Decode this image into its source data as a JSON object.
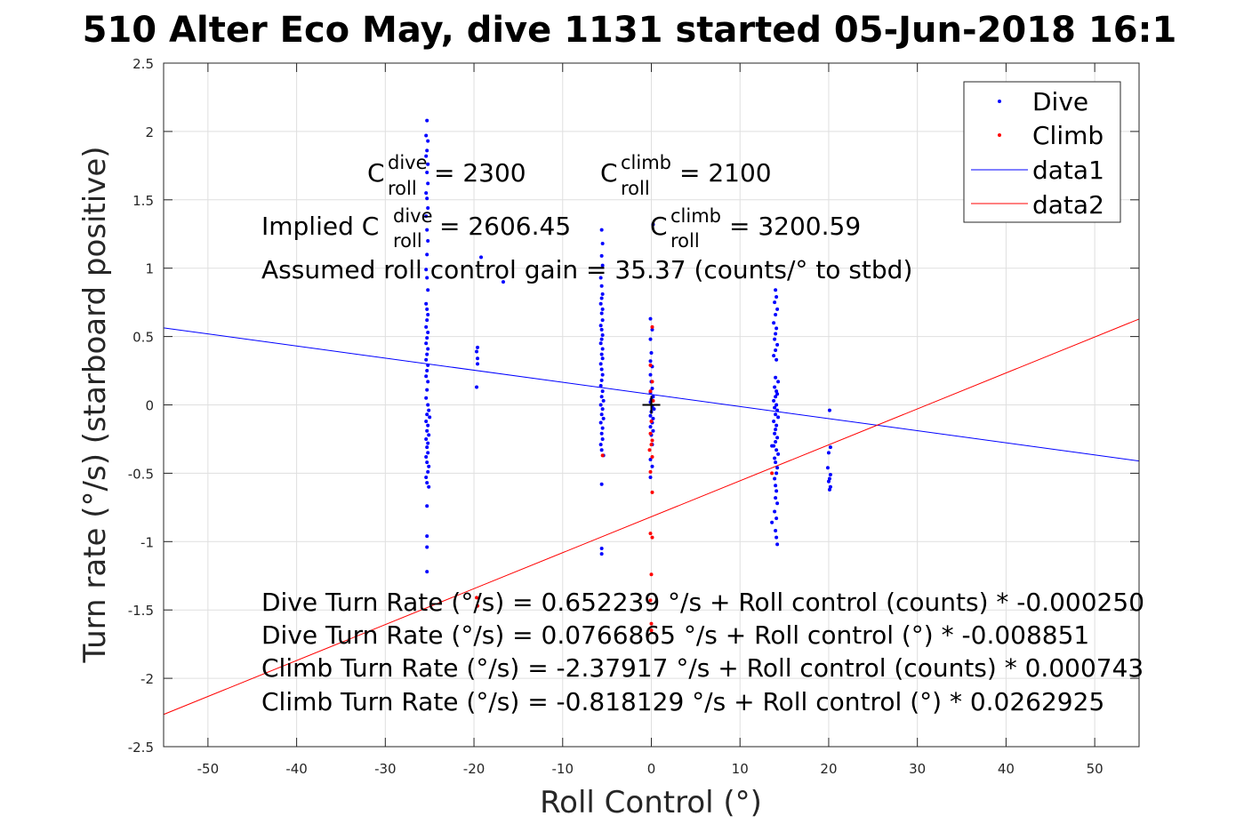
{
  "chart_data": {
    "type": "scatter",
    "title": "510 Alter Eco May, dive 1131 started 05-Jun-2018 16:1",
    "xlabel": "Roll Control (°)",
    "ylabel": "Turn rate (°/s) (starboard positive)",
    "xlim": [
      -55,
      55
    ],
    "ylim": [
      -2.5,
      2.5
    ],
    "grid": true,
    "x_ticks": [
      -50,
      -40,
      -30,
      -20,
      -10,
      0,
      10,
      20,
      30,
      40,
      50
    ],
    "x_tick_labels": [
      "-50",
      "-40",
      "-30",
      "-20",
      "-10",
      "0",
      "10",
      "20",
      "30",
      "40",
      "50"
    ],
    "y_ticks": [
      -2.5,
      -2,
      -1.5,
      -1,
      -0.5,
      0,
      0.5,
      1,
      1.5,
      2,
      2.5
    ],
    "y_tick_labels": [
      "-2.5",
      "-2",
      "-1.5",
      "-1",
      "-0.5",
      "0",
      "0.5",
      "1",
      "1.5",
      "2",
      "2.5"
    ],
    "legend_position": "top-right",
    "legend": [
      "Dive",
      "Climb",
      "data1",
      "data2"
    ],
    "colors": {
      "dive": "#0000ff",
      "climb": "#ff0000",
      "data1": "#0000ff",
      "data2": "#ff0000",
      "center": "#000000"
    },
    "series": [
      {
        "name": "Dive",
        "kind": "points",
        "color": "#0000ff",
        "points": [
          [
            -25.3,
            2.08
          ],
          [
            -25.4,
            1.97
          ],
          [
            -25.2,
            1.93
          ],
          [
            -25.3,
            1.86
          ],
          [
            -25.4,
            1.82
          ],
          [
            -25.2,
            1.76
          ],
          [
            -25.3,
            1.7
          ],
          [
            -25.2,
            1.62
          ],
          [
            -25.4,
            1.55
          ],
          [
            -25.3,
            1.51
          ],
          [
            -25.2,
            1.44
          ],
          [
            -25.4,
            1.38
          ],
          [
            -25.3,
            1.28
          ],
          [
            -25.2,
            1.2
          ],
          [
            -25.3,
            1.1
          ],
          [
            -25.4,
            0.99
          ],
          [
            -25.3,
            0.93
          ],
          [
            -25.2,
            0.84
          ],
          [
            -25.4,
            0.74
          ],
          [
            -25.3,
            0.7
          ],
          [
            -25.2,
            0.66
          ],
          [
            -25.3,
            0.62
          ],
          [
            -25.4,
            0.57
          ],
          [
            -25.2,
            0.53
          ],
          [
            -25.3,
            0.49
          ],
          [
            -25.4,
            0.45
          ],
          [
            -25.2,
            0.41
          ],
          [
            -25.3,
            0.37
          ],
          [
            -25.4,
            0.33
          ],
          [
            -25.2,
            0.29
          ],
          [
            -25.3,
            0.25
          ],
          [
            -25.4,
            0.21
          ],
          [
            -25.2,
            0.17
          ],
          [
            -25.3,
            0.11
          ],
          [
            -25.4,
            0.05
          ],
          [
            -25.2,
            0.0
          ],
          [
            -25.1,
            -0.04
          ],
          [
            -25.3,
            -0.07
          ],
          [
            -25.0,
            -0.09
          ],
          [
            -25.4,
            -0.12
          ],
          [
            -25.2,
            -0.15
          ],
          [
            -25.3,
            -0.19
          ],
          [
            -25.1,
            -0.22
          ],
          [
            -25.4,
            -0.25
          ],
          [
            -25.2,
            -0.28
          ],
          [
            -25.3,
            -0.31
          ],
          [
            -25.2,
            -0.35
          ],
          [
            -25.4,
            -0.38
          ],
          [
            -25.3,
            -0.42
          ],
          [
            -25.1,
            -0.45
          ],
          [
            -25.2,
            -0.49
          ],
          [
            -25.4,
            -0.53
          ],
          [
            -25.3,
            -0.57
          ],
          [
            -25.1,
            -0.6
          ],
          [
            -25.3,
            -0.74
          ],
          [
            -25.3,
            -0.96
          ],
          [
            -25.3,
            -1.04
          ],
          [
            -25.3,
            -1.22
          ],
          [
            -19.6,
            0.42
          ],
          [
            -19.7,
            0.39
          ],
          [
            -19.6,
            0.34
          ],
          [
            -19.6,
            0.3
          ],
          [
            -19.7,
            0.13
          ],
          [
            -19.2,
            1.08
          ],
          [
            -16.7,
            0.9
          ],
          [
            -5.6,
            1.28
          ],
          [
            -5.5,
            1.18
          ],
          [
            -5.6,
            1.09
          ],
          [
            -5.5,
            1.02
          ],
          [
            -5.7,
            0.93
          ],
          [
            -5.6,
            0.87
          ],
          [
            -5.5,
            0.81
          ],
          [
            -5.6,
            0.78
          ],
          [
            -5.7,
            0.74
          ],
          [
            -5.5,
            0.7
          ],
          [
            -5.6,
            0.67
          ],
          [
            -5.5,
            0.62
          ],
          [
            -5.7,
            0.58
          ],
          [
            -5.6,
            0.55
          ],
          [
            -5.5,
            0.51
          ],
          [
            -5.6,
            0.48
          ],
          [
            -5.7,
            0.45
          ],
          [
            -5.5,
            0.41
          ],
          [
            -5.6,
            0.37
          ],
          [
            -5.5,
            0.34
          ],
          [
            -5.7,
            0.3
          ],
          [
            -5.6,
            0.26
          ],
          [
            -5.5,
            0.22
          ],
          [
            -5.6,
            0.18
          ],
          [
            -5.7,
            0.14
          ],
          [
            -5.5,
            0.1
          ],
          [
            -5.6,
            0.06
          ],
          [
            -5.4,
            0.03
          ],
          [
            -5.7,
            0.0
          ],
          [
            -5.5,
            -0.03
          ],
          [
            -5.6,
            -0.07
          ],
          [
            -5.4,
            -0.1
          ],
          [
            -5.7,
            -0.13
          ],
          [
            -5.5,
            -0.17
          ],
          [
            -5.6,
            -0.21
          ],
          [
            -5.5,
            -0.25
          ],
          [
            -5.7,
            -0.29
          ],
          [
            -5.6,
            -0.33
          ],
          [
            -5.4,
            -0.37
          ],
          [
            -5.6,
            -0.58
          ],
          [
            -5.6,
            -1.05
          ],
          [
            -5.6,
            -1.09
          ],
          [
            -0.1,
            0.63
          ],
          [
            0.1,
            0.55
          ],
          [
            -0.1,
            0.48
          ],
          [
            0.0,
            0.38
          ],
          [
            -0.1,
            0.32
          ],
          [
            0.1,
            0.28
          ],
          [
            -0.1,
            0.22
          ],
          [
            0.0,
            0.17
          ],
          [
            0.1,
            0.12
          ],
          [
            -0.1,
            0.09
          ],
          [
            0.2,
            0.06
          ],
          [
            0.0,
            0.04
          ],
          [
            -0.1,
            0.02
          ],
          [
            0.1,
            -0.01
          ],
          [
            0.3,
            -0.03
          ],
          [
            0.0,
            -0.05
          ],
          [
            -0.1,
            -0.08
          ],
          [
            0.2,
            -0.1
          ],
          [
            0.1,
            -0.13
          ],
          [
            -0.1,
            -0.16
          ],
          [
            0.2,
            -0.19
          ],
          [
            0.0,
            -0.22
          ],
          [
            0.1,
            -0.29
          ],
          [
            -0.1,
            -0.4
          ],
          [
            0.1,
            -0.45
          ],
          [
            -0.1,
            -0.53
          ],
          [
            0.2,
            1.32
          ],
          [
            14.0,
            0.84
          ],
          [
            14.1,
            0.79
          ],
          [
            13.9,
            0.75
          ],
          [
            14.2,
            0.7
          ],
          [
            14.0,
            0.66
          ],
          [
            13.8,
            0.6
          ],
          [
            14.1,
            0.56
          ],
          [
            14.0,
            0.52
          ],
          [
            13.9,
            0.48
          ],
          [
            14.2,
            0.44
          ],
          [
            14.0,
            0.4
          ],
          [
            13.8,
            0.36
          ],
          [
            14.1,
            0.33
          ],
          [
            14.3,
            0.17
          ],
          [
            14.0,
            0.2
          ],
          [
            13.9,
            0.13
          ],
          [
            14.1,
            0.1
          ],
          [
            14.2,
            0.08
          ],
          [
            14.0,
            0.06
          ],
          [
            13.8,
            0.03
          ],
          [
            14.1,
            0.0
          ],
          [
            13.9,
            -0.02
          ],
          [
            14.2,
            -0.04
          ],
          [
            14.0,
            -0.07
          ],
          [
            14.3,
            -0.09
          ],
          [
            13.8,
            -0.12
          ],
          [
            14.1,
            -0.15
          ],
          [
            14.0,
            -0.18
          ],
          [
            13.9,
            -0.21
          ],
          [
            14.2,
            -0.24
          ],
          [
            14.0,
            -0.27
          ],
          [
            13.8,
            -0.3
          ],
          [
            14.1,
            -0.33
          ],
          [
            14.3,
            -0.36
          ],
          [
            13.9,
            -0.39
          ],
          [
            14.0,
            -0.42
          ],
          [
            14.2,
            -0.46
          ],
          [
            14.1,
            -0.5
          ],
          [
            13.9,
            -0.54
          ],
          [
            14.0,
            -0.59
          ],
          [
            14.1,
            -0.63
          ],
          [
            14.0,
            -0.68
          ],
          [
            14.2,
            -0.72
          ],
          [
            13.9,
            -0.78
          ],
          [
            14.1,
            -0.83
          ],
          [
            13.6,
            -0.86
          ],
          [
            14.0,
            -0.92
          ],
          [
            14.1,
            -0.97
          ],
          [
            14.2,
            -1.02
          ],
          [
            13.6,
            -0.3
          ],
          [
            20.1,
            -0.04
          ],
          [
            20.2,
            -0.31
          ],
          [
            20.0,
            -0.35
          ],
          [
            19.9,
            -0.46
          ],
          [
            20.2,
            -0.51
          ],
          [
            20.1,
            -0.54
          ],
          [
            20.0,
            -0.56
          ],
          [
            20.2,
            -0.6
          ],
          [
            20.1,
            -0.62
          ]
        ]
      },
      {
        "name": "Climb",
        "kind": "points",
        "color": "#ff0000",
        "points": [
          [
            0.1,
            0.57
          ],
          [
            -0.1,
            0.29
          ],
          [
            0.1,
            0.17
          ],
          [
            -0.1,
            0.1
          ],
          [
            0.2,
            0.03
          ],
          [
            0.0,
            -0.12
          ],
          [
            -0.1,
            -0.21
          ],
          [
            0.1,
            -0.26
          ],
          [
            0.0,
            -0.29
          ],
          [
            -0.2,
            -0.33
          ],
          [
            0.1,
            -0.38
          ],
          [
            -0.1,
            -0.49
          ],
          [
            0.1,
            -0.64
          ],
          [
            -0.1,
            -0.94
          ],
          [
            0.1,
            -0.97
          ],
          [
            0.0,
            -1.24
          ],
          [
            -0.1,
            -1.43
          ],
          [
            0.0,
            -1.6
          ],
          [
            0.0,
            -1.65
          ],
          [
            -5.5,
            -0.37
          ],
          [
            -19.7,
            -1.41
          ],
          [
            -19.6,
            -1.47
          ],
          [
            13.6,
            -0.5
          ]
        ]
      },
      {
        "name": "data1",
        "kind": "line",
        "color": "#0000ff",
        "intercept": 0.0766865,
        "slope": -0.008851
      },
      {
        "name": "data2",
        "kind": "line",
        "color": "#ff0000",
        "intercept": -0.818129,
        "slope": 0.0262925
      }
    ],
    "center_marker": [
      0,
      0
    ],
    "annotations": {
      "c_dive_base": "C",
      "c_dive_sup": "dive",
      "c_dive_sub": "roll",
      "c_dive_value": " = 2300",
      "c_climb_base": "C",
      "c_climb_sup": "climb",
      "c_climb_sub": "roll",
      "c_climb_value": " = 2100",
      "implied_prefix": "Implied C",
      "implied_dive_sup": "dive",
      "implied_dive_sub": "roll",
      "implied_dive_value": " = 2606.45",
      "implied_climb_base": "C",
      "implied_climb_sup": "climb",
      "implied_climb_sub": "roll",
      "implied_climb_value": " = 3200.59",
      "gain": "Assumed roll control gain = 35.37 (counts/° to stbd)",
      "eq1": "Dive Turn Rate (°/s) = 0.652239 °/s + Roll control (counts) * -0.000250",
      "eq2": "Dive Turn Rate (°/s) = 0.0766865 °/s + Roll control (°) * -0.008851",
      "eq3": "Climb Turn Rate (°/s) = -2.37917 °/s + Roll control (counts) * 0.000743",
      "eq4": "Climb Turn Rate (°/s) = -0.818129 °/s + Roll control (°) * 0.0262925"
    }
  }
}
